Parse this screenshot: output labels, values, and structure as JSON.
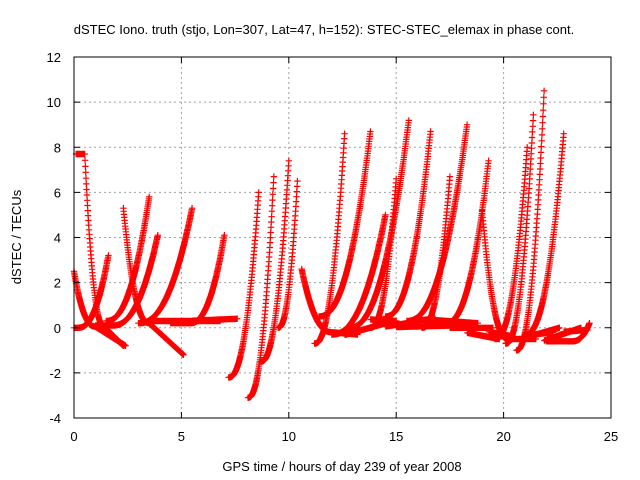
{
  "chart_data": {
    "type": "scatter",
    "title": "dSTEC Iono. truth (stjo, Lon=307, Lat=47, h=152): STEC-STEC_elemax in phase cont.",
    "xlabel": "GPS time / hours of day 239 of year 2008",
    "ylabel": "dSTEC  / TECUs",
    "xlim": [
      0,
      25
    ],
    "ylim": [
      -4,
      12
    ],
    "x_ticks": [
      "0",
      "5",
      "10",
      "15",
      "20",
      "25"
    ],
    "y_ticks": [
      "-4",
      "-2",
      "0",
      "2",
      "4",
      "6",
      "8",
      "10",
      "12"
    ],
    "grid": true,
    "marker": "+",
    "marker_color": "#ff0000",
    "arcs": [
      {
        "start": 0.0,
        "end": 2.4,
        "peak_t": 0.0,
        "peak_v": 2.5,
        "end_v": -0.8,
        "min_t": 1.0,
        "min_v": 0.05
      },
      {
        "start": 0.1,
        "end": 2.3,
        "peak_t": 0.5,
        "peak_v": 7.7,
        "end_v": -0.8,
        "min_t": 1.4,
        "min_v": 0.05
      },
      {
        "start": 0.0,
        "end": 1.6,
        "peak_t": 1.6,
        "peak_v": 3.2,
        "end_v": 3.2,
        "min_t": 0.2,
        "min_v": 0.0
      },
      {
        "start": 1.0,
        "end": 3.9,
        "peak_t": 3.9,
        "peak_v": 4.1,
        "end_v": 4.1,
        "min_t": 1.8,
        "min_v": 0.1
      },
      {
        "start": 2.3,
        "end": 5.1,
        "peak_t": 2.3,
        "peak_v": 5.3,
        "end_v": -1.2,
        "min_t": 3.5,
        "min_v": 0.2
      },
      {
        "start": 1.5,
        "end": 6.8,
        "peak_t": 3.5,
        "peak_v": 5.8,
        "end_v": 0.3,
        "min_t": 1.5,
        "min_v": 0.3
      },
      {
        "start": 3.0,
        "end": 7.6,
        "peak_t": 5.5,
        "peak_v": 5.3,
        "end_v": 0.4,
        "min_t": 3.0,
        "min_v": 0.2
      },
      {
        "start": 4.5,
        "end": 7.0,
        "peak_t": 7.0,
        "peak_v": 4.1,
        "end_v": 4.1,
        "min_t": 5.4,
        "min_v": 0.2
      },
      {
        "start": 7.2,
        "end": 8.6,
        "peak_t": 8.6,
        "peak_v": 6.0,
        "end_v": 6.0,
        "min_t": 7.2,
        "min_v": -2.2
      },
      {
        "start": 8.1,
        "end": 9.3,
        "peak_t": 9.3,
        "peak_v": 6.7,
        "end_v": 6.7,
        "min_t": 8.1,
        "min_v": -3.1
      },
      {
        "start": 8.7,
        "end": 10.0,
        "peak_t": 10.0,
        "peak_v": 7.4,
        "end_v": 7.4,
        "min_t": 8.7,
        "min_v": -1.5
      },
      {
        "start": 9.5,
        "end": 10.4,
        "peak_t": 10.4,
        "peak_v": 6.5,
        "end_v": 6.5,
        "min_t": 9.5,
        "min_v": 0.0
      },
      {
        "start": 10.6,
        "end": 13.2,
        "peak_t": 10.6,
        "peak_v": 2.6,
        "end_v": -0.3,
        "min_t": 12.0,
        "min_v": -0.2
      },
      {
        "start": 11.2,
        "end": 14.5,
        "peak_t": 12.6,
        "peak_v": 8.6,
        "end_v": 0.2,
        "min_t": 11.2,
        "min_v": -0.7
      },
      {
        "start": 11.4,
        "end": 15.0,
        "peak_t": 13.8,
        "peak_v": 8.7,
        "end_v": 0.3,
        "min_t": 11.4,
        "min_v": 0.5
      },
      {
        "start": 12.0,
        "end": 15.5,
        "peak_t": 14.5,
        "peak_v": 5.0,
        "end_v": 0.2,
        "min_t": 12.0,
        "min_v": -0.3
      },
      {
        "start": 12.8,
        "end": 16.8,
        "peak_t": 15.6,
        "peak_v": 9.3,
        "end_v": 0.4,
        "min_t": 12.8,
        "min_v": 0.0
      },
      {
        "start": 13.8,
        "end": 17.7,
        "peak_t": 15.0,
        "peak_v": 6.6,
        "end_v": 0.1,
        "min_t": 13.8,
        "min_v": 0.0
      },
      {
        "start": 14.5,
        "end": 18.8,
        "peak_t": 16.6,
        "peak_v": 8.7,
        "end_v": 0.2,
        "min_t": 14.5,
        "min_v": 0.5
      },
      {
        "start": 15.5,
        "end": 19.8,
        "peak_t": 18.3,
        "peak_v": 9.0,
        "end_v": -0.5,
        "min_t": 15.5,
        "min_v": 0.3
      },
      {
        "start": 16.2,
        "end": 19.5,
        "peak_t": 17.5,
        "peak_v": 6.7,
        "end_v": 0.0,
        "min_t": 16.2,
        "min_v": 0.0
      },
      {
        "start": 17.3,
        "end": 20.5,
        "peak_t": 19.3,
        "peak_v": 7.4,
        "end_v": -0.4,
        "min_t": 17.3,
        "min_v": 0.2
      },
      {
        "start": 19.0,
        "end": 21.5,
        "peak_t": 19.0,
        "peak_v": 5.2,
        "end_v": -0.5,
        "min_t": 20.2,
        "min_v": -0.5
      },
      {
        "start": 19.6,
        "end": 22.3,
        "peak_t": 21.1,
        "peak_v": 8.0,
        "end_v": -0.2,
        "min_t": 19.6,
        "min_v": -0.5
      },
      {
        "start": 20.1,
        "end": 22.6,
        "peak_t": 21.4,
        "peak_v": 9.7,
        "end_v": 0.0,
        "min_t": 20.1,
        "min_v": -0.7
      },
      {
        "start": 20.6,
        "end": 23.6,
        "peak_t": 21.9,
        "peak_v": 10.8,
        "end_v": 0.0,
        "min_t": 20.6,
        "min_v": -1.0
      },
      {
        "start": 21.0,
        "end": 23.9,
        "peak_t": 22.8,
        "peak_v": 8.6,
        "end_v": -0.1,
        "min_t": 21.0,
        "min_v": -0.3
      },
      {
        "start": 22.0,
        "end": 24.0,
        "peak_t": 24.0,
        "peak_v": 0.2,
        "end_v": 0.2,
        "min_t": 23.2,
        "min_v": -0.6
      }
    ]
  }
}
